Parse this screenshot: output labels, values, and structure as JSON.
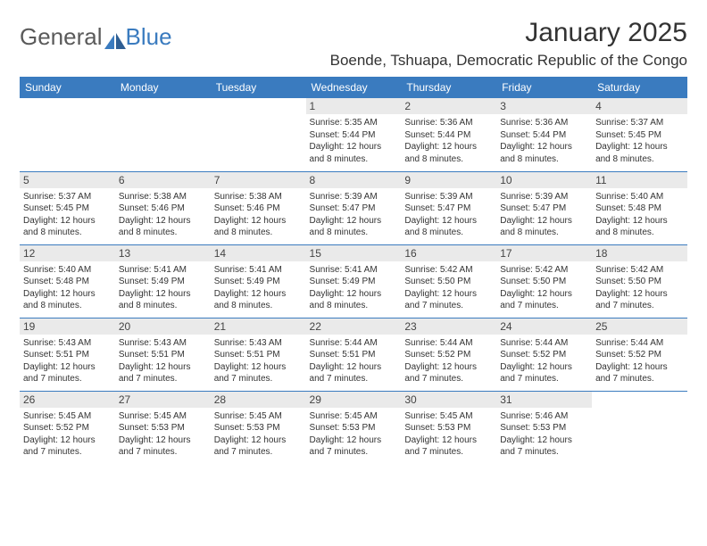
{
  "brand": {
    "name1": "General",
    "name2": "Blue"
  },
  "colors": {
    "accent": "#3a7bbf",
    "header_bg": "#3a7bbf",
    "daynum_bg": "#eaeaea",
    "row_divider": "#3a7bbf",
    "text": "#333333",
    "logo_gray": "#5a5a5a"
  },
  "typography": {
    "title_fontsize": 30,
    "location_fontsize": 17,
    "weekday_fontsize": 12,
    "body_fontsize": 10
  },
  "title": "January 2025",
  "location": "Boende, Tshuapa, Democratic Republic of the Congo",
  "weekdays": [
    "Sunday",
    "Monday",
    "Tuesday",
    "Wednesday",
    "Thursday",
    "Friday",
    "Saturday"
  ],
  "labels": {
    "sunrise": "Sunrise:",
    "sunset": "Sunset:",
    "daylight": "Daylight:"
  },
  "calendar": {
    "type": "table",
    "columns": 7,
    "rows": 5,
    "leading_blanks": 3,
    "days": [
      {
        "n": 1,
        "sunrise": "5:35 AM",
        "sunset": "5:44 PM",
        "daylight": "12 hours and 8 minutes."
      },
      {
        "n": 2,
        "sunrise": "5:36 AM",
        "sunset": "5:44 PM",
        "daylight": "12 hours and 8 minutes."
      },
      {
        "n": 3,
        "sunrise": "5:36 AM",
        "sunset": "5:44 PM",
        "daylight": "12 hours and 8 minutes."
      },
      {
        "n": 4,
        "sunrise": "5:37 AM",
        "sunset": "5:45 PM",
        "daylight": "12 hours and 8 minutes."
      },
      {
        "n": 5,
        "sunrise": "5:37 AM",
        "sunset": "5:45 PM",
        "daylight": "12 hours and 8 minutes."
      },
      {
        "n": 6,
        "sunrise": "5:38 AM",
        "sunset": "5:46 PM",
        "daylight": "12 hours and 8 minutes."
      },
      {
        "n": 7,
        "sunrise": "5:38 AM",
        "sunset": "5:46 PM",
        "daylight": "12 hours and 8 minutes."
      },
      {
        "n": 8,
        "sunrise": "5:39 AM",
        "sunset": "5:47 PM",
        "daylight": "12 hours and 8 minutes."
      },
      {
        "n": 9,
        "sunrise": "5:39 AM",
        "sunset": "5:47 PM",
        "daylight": "12 hours and 8 minutes."
      },
      {
        "n": 10,
        "sunrise": "5:39 AM",
        "sunset": "5:47 PM",
        "daylight": "12 hours and 8 minutes."
      },
      {
        "n": 11,
        "sunrise": "5:40 AM",
        "sunset": "5:48 PM",
        "daylight": "12 hours and 8 minutes."
      },
      {
        "n": 12,
        "sunrise": "5:40 AM",
        "sunset": "5:48 PM",
        "daylight": "12 hours and 8 minutes."
      },
      {
        "n": 13,
        "sunrise": "5:41 AM",
        "sunset": "5:49 PM",
        "daylight": "12 hours and 8 minutes."
      },
      {
        "n": 14,
        "sunrise": "5:41 AM",
        "sunset": "5:49 PM",
        "daylight": "12 hours and 8 minutes."
      },
      {
        "n": 15,
        "sunrise": "5:41 AM",
        "sunset": "5:49 PM",
        "daylight": "12 hours and 8 minutes."
      },
      {
        "n": 16,
        "sunrise": "5:42 AM",
        "sunset": "5:50 PM",
        "daylight": "12 hours and 7 minutes."
      },
      {
        "n": 17,
        "sunrise": "5:42 AM",
        "sunset": "5:50 PM",
        "daylight": "12 hours and 7 minutes."
      },
      {
        "n": 18,
        "sunrise": "5:42 AM",
        "sunset": "5:50 PM",
        "daylight": "12 hours and 7 minutes."
      },
      {
        "n": 19,
        "sunrise": "5:43 AM",
        "sunset": "5:51 PM",
        "daylight": "12 hours and 7 minutes."
      },
      {
        "n": 20,
        "sunrise": "5:43 AM",
        "sunset": "5:51 PM",
        "daylight": "12 hours and 7 minutes."
      },
      {
        "n": 21,
        "sunrise": "5:43 AM",
        "sunset": "5:51 PM",
        "daylight": "12 hours and 7 minutes."
      },
      {
        "n": 22,
        "sunrise": "5:44 AM",
        "sunset": "5:51 PM",
        "daylight": "12 hours and 7 minutes."
      },
      {
        "n": 23,
        "sunrise": "5:44 AM",
        "sunset": "5:52 PM",
        "daylight": "12 hours and 7 minutes."
      },
      {
        "n": 24,
        "sunrise": "5:44 AM",
        "sunset": "5:52 PM",
        "daylight": "12 hours and 7 minutes."
      },
      {
        "n": 25,
        "sunrise": "5:44 AM",
        "sunset": "5:52 PM",
        "daylight": "12 hours and 7 minutes."
      },
      {
        "n": 26,
        "sunrise": "5:45 AM",
        "sunset": "5:52 PM",
        "daylight": "12 hours and 7 minutes."
      },
      {
        "n": 27,
        "sunrise": "5:45 AM",
        "sunset": "5:53 PM",
        "daylight": "12 hours and 7 minutes."
      },
      {
        "n": 28,
        "sunrise": "5:45 AM",
        "sunset": "5:53 PM",
        "daylight": "12 hours and 7 minutes."
      },
      {
        "n": 29,
        "sunrise": "5:45 AM",
        "sunset": "5:53 PM",
        "daylight": "12 hours and 7 minutes."
      },
      {
        "n": 30,
        "sunrise": "5:45 AM",
        "sunset": "5:53 PM",
        "daylight": "12 hours and 7 minutes."
      },
      {
        "n": 31,
        "sunrise": "5:46 AM",
        "sunset": "5:53 PM",
        "daylight": "12 hours and 7 minutes."
      }
    ]
  }
}
